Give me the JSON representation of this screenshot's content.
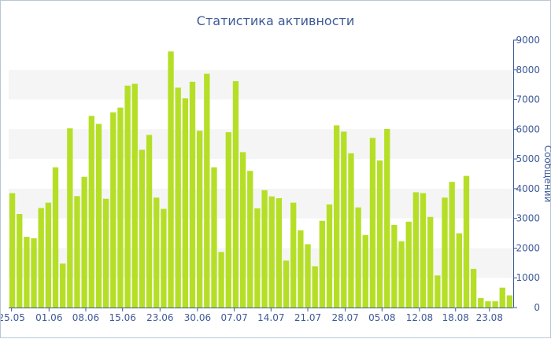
{
  "chart_data": {
    "type": "bar",
    "title": "Статистика активности",
    "xlabel": "",
    "ylabel": "Сообщений",
    "y_axis_side": "right",
    "ylim": [
      0,
      9000
    ],
    "yticks": [
      0,
      1000,
      2000,
      3000,
      4000,
      5000,
      6000,
      7000,
      8000,
      9000
    ],
    "grid": "alternating horizontal bands",
    "bar_color": "#b5df27",
    "band_color": "#f5f5f5",
    "text_color": "#3e5a96",
    "x_tick_labels": [
      "25.05",
      "01.06",
      "08.06",
      "15.06",
      "23.06",
      "30.06",
      "07.07",
      "14.07",
      "21.07",
      "28.07",
      "05.08",
      "12.08",
      "18.08",
      "23.08"
    ],
    "values": [
      3850,
      3150,
      2380,
      2330,
      3350,
      3530,
      4720,
      1480,
      6030,
      3750,
      4400,
      6450,
      6180,
      3660,
      6570,
      6730,
      7470,
      7530,
      5310,
      5810,
      3700,
      3320,
      8620,
      7400,
      7040,
      7600,
      5950,
      7870,
      4720,
      1870,
      5900,
      7620,
      5230,
      4600,
      3340,
      3950,
      3740,
      3680,
      1580,
      3530,
      2600,
      2130,
      1390,
      2920,
      3470,
      6130,
      5920,
      5190,
      3370,
      2440,
      5710,
      4950,
      6010,
      2780,
      2230,
      2890,
      3880,
      3850,
      3050,
      1080,
      3700,
      4230,
      2500,
      4430,
      1300,
      320,
      210,
      210,
      670,
      410
    ]
  }
}
